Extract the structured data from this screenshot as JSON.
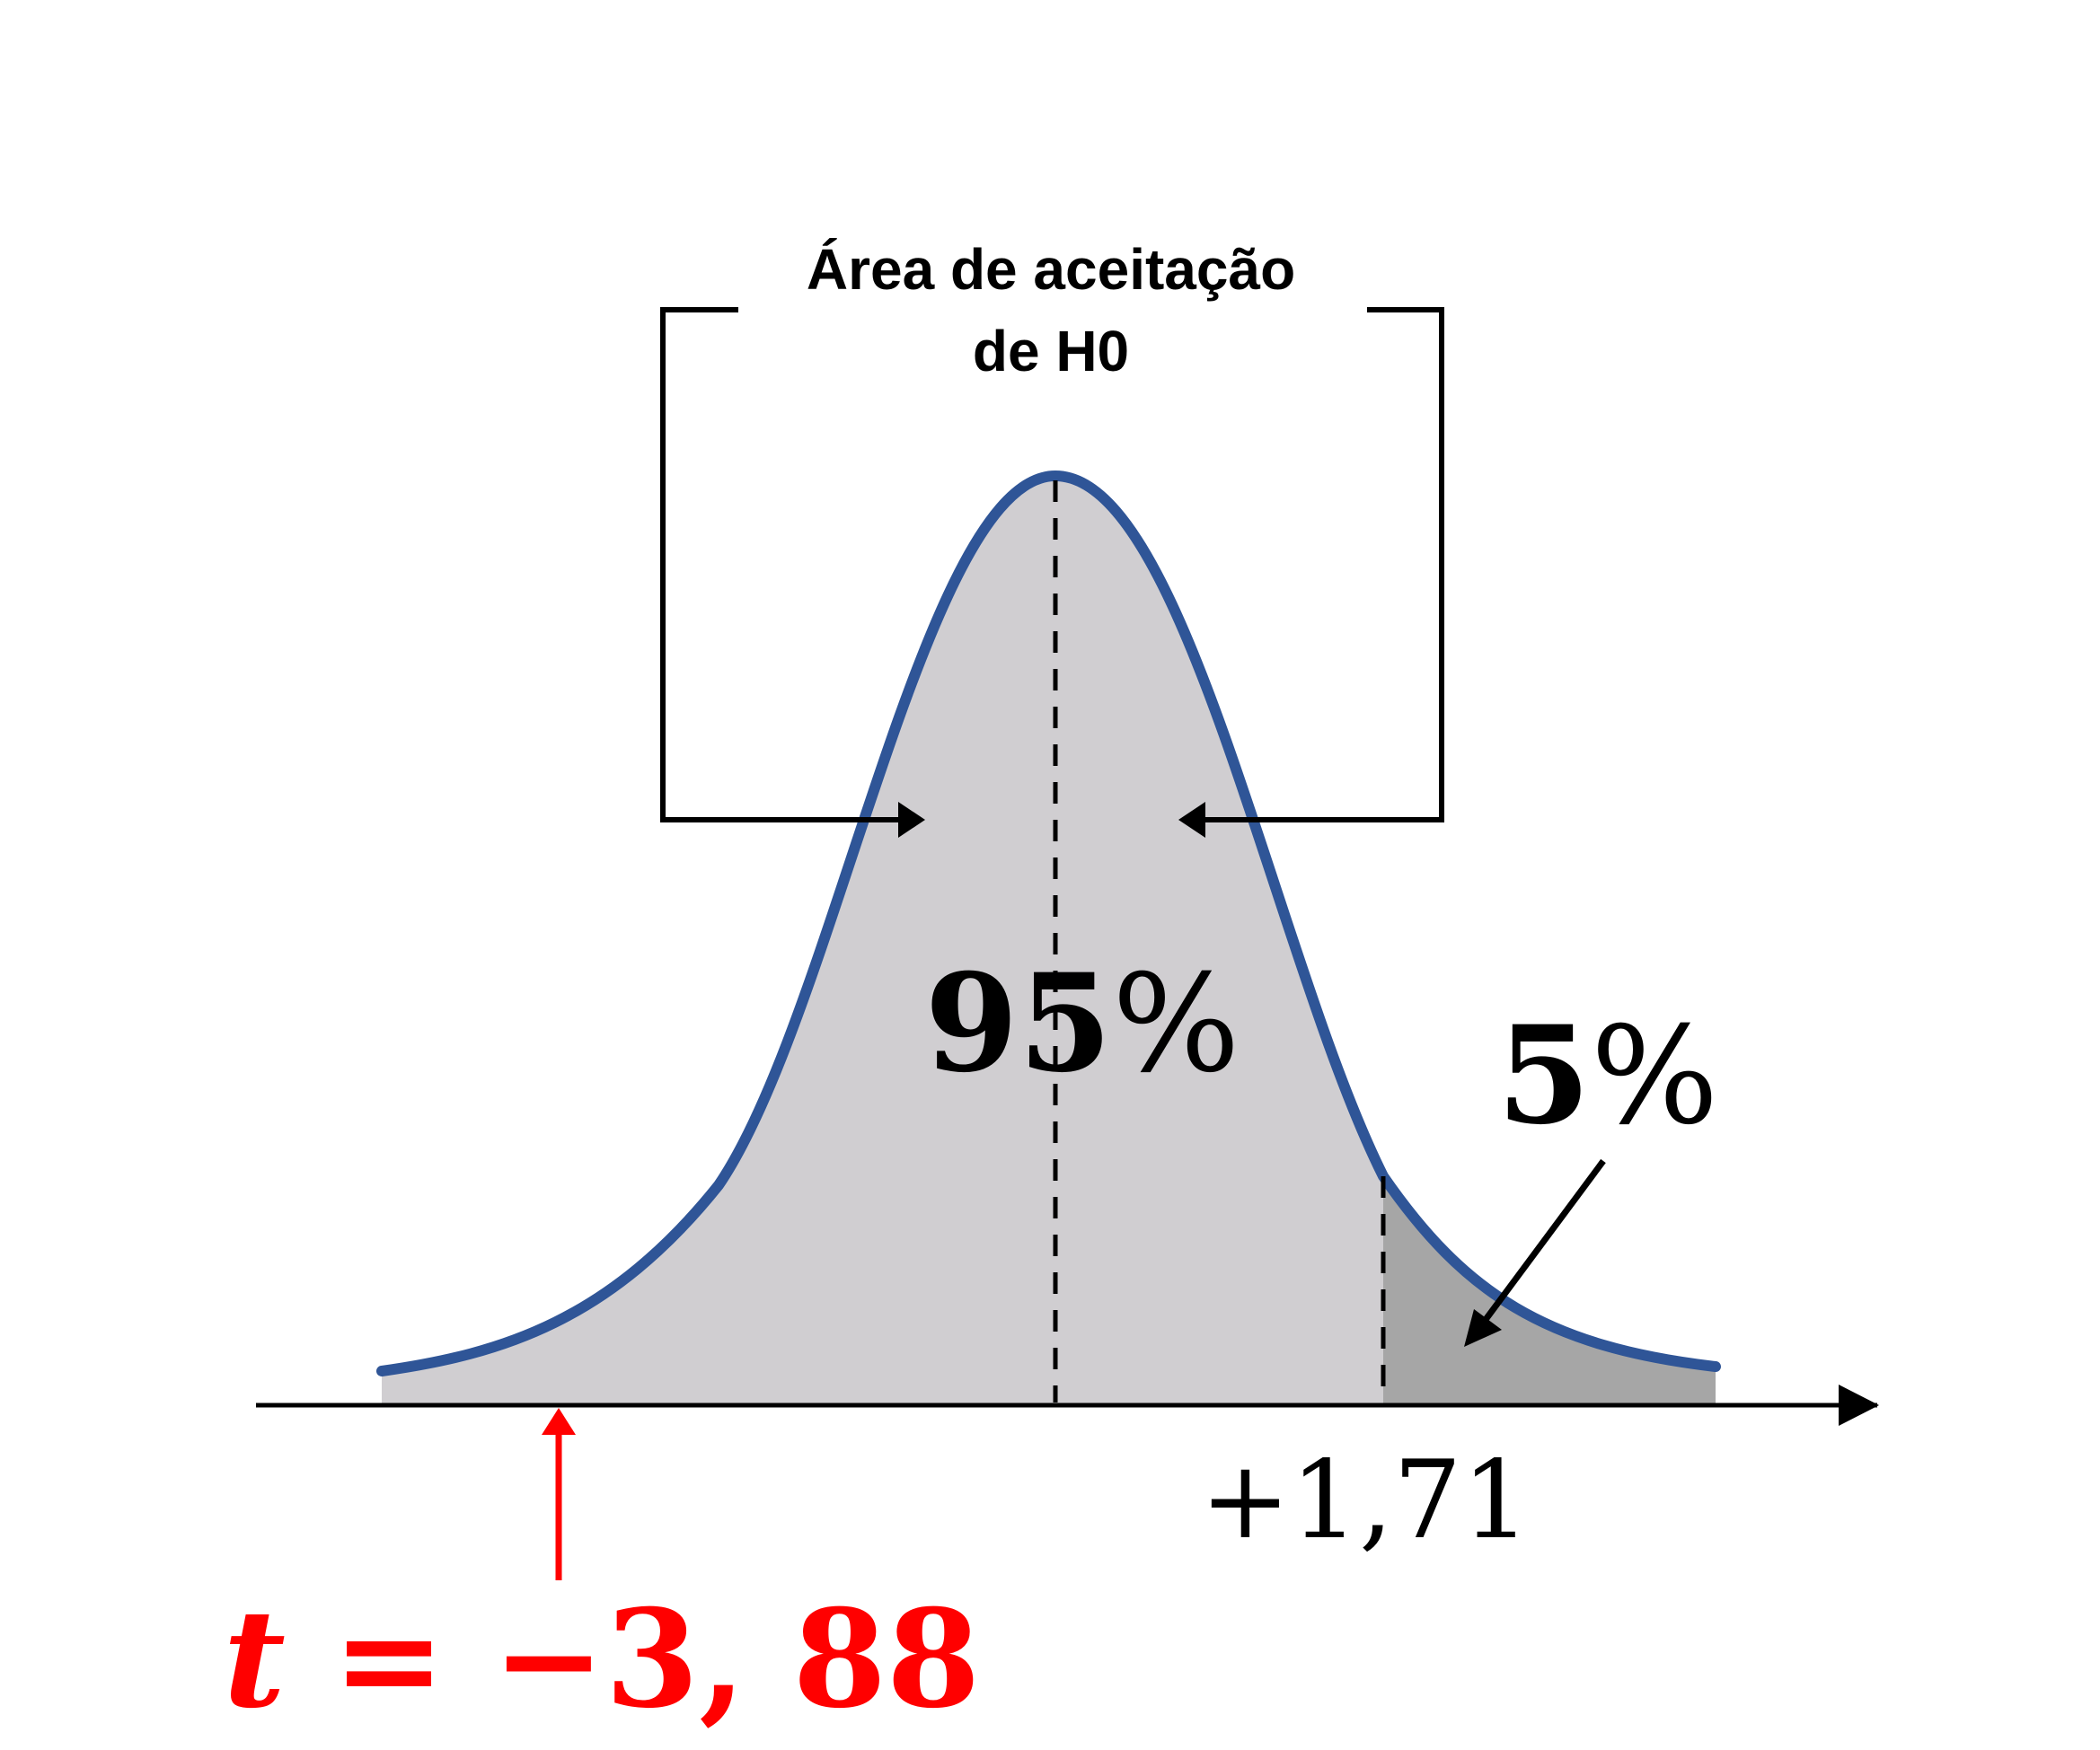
{
  "acceptance_label_line1": "Área de aceitação",
  "acceptance_label_line2": "de H0",
  "center_percent_value": "95",
  "center_percent_sign": "%",
  "tail_percent_value": "5",
  "tail_percent_sign": "%",
  "critical_value_label": "+1,71",
  "t_statistic_label": "t = −3, 88",
  "colors": {
    "curve": "#2f5597",
    "acceptance_fill": "#d0ced1",
    "rejection_fill": "#a6a6a6",
    "line": "#000000",
    "t_stat": "#ff0000"
  }
}
